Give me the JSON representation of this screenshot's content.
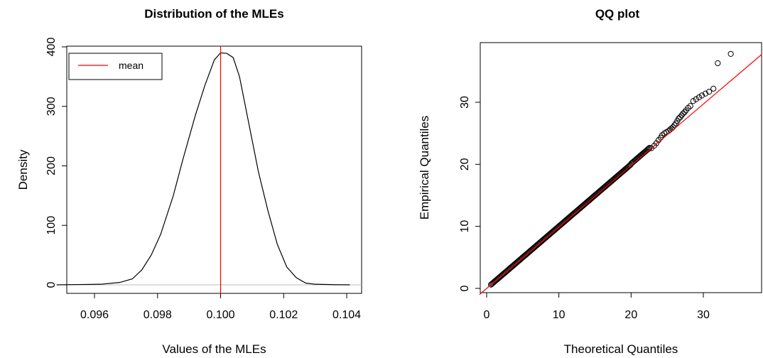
{
  "chart_data": [
    {
      "type": "line",
      "title": "Distribution of the MLEs",
      "xlabel": "Values of the MLEs",
      "ylabel": "Density",
      "xlim": [
        0.0945,
        0.1045
      ],
      "ylim": [
        -10,
        405
      ],
      "xticks": [
        0.096,
        0.098,
        0.1,
        0.102,
        0.104
      ],
      "xtick_labels": [
        "0.096",
        "0.098",
        "0.100",
        "0.102",
        "0.104"
      ],
      "yticks": [
        0,
        100,
        200,
        300,
        400
      ],
      "ytick_labels": [
        "0",
        "100",
        "200",
        "300",
        "400"
      ],
      "grid": false,
      "legend": {
        "position": "top-left",
        "entries": [
          {
            "label": "mean",
            "color": "#ff0000"
          }
        ]
      },
      "series": [
        {
          "color": "#000000",
          "x": [
            0.0948,
            0.0955,
            0.0962,
            0.0968,
            0.0972,
            0.0975,
            0.0978,
            0.0981,
            0.0985,
            0.0988,
            0.0992,
            0.0995,
            0.0998,
            0.1,
            0.1002,
            0.1004,
            0.1006,
            0.1009,
            0.1012,
            0.1015,
            0.1018,
            0.1021,
            0.1024,
            0.1027,
            0.103,
            0.1036,
            0.1041
          ],
          "y": [
            0,
            0.5,
            1,
            4,
            10,
            25,
            50,
            85,
            150,
            210,
            285,
            335,
            378,
            390,
            389,
            382,
            350,
            270,
            190,
            125,
            68,
            30,
            12,
            3,
            1,
            0.3,
            0
          ]
        }
      ],
      "reference_lines": [
        {
          "orientation": "vertical",
          "value": 0.1,
          "color": "#ff0000",
          "label": "mean"
        },
        {
          "orientation": "horizontal",
          "value": 0,
          "color": "#bebebe"
        }
      ]
    },
    {
      "type": "scatter",
      "title": "QQ plot",
      "xlabel": "Theoretical Quantiles",
      "ylabel": "Empirical Quantiles",
      "xlim": [
        -1,
        38.5
      ],
      "ylim": [
        -0.6,
        39
      ],
      "xticks": [
        0,
        10,
        20,
        30
      ],
      "xtick_labels": [
        "0",
        "10",
        "20",
        "30"
      ],
      "yticks": [
        0,
        10,
        20,
        30
      ],
      "ytick_labels": [
        "0",
        "10",
        "20",
        "30"
      ],
      "grid": false,
      "diagonal": {
        "slope": 1,
        "intercept": 0,
        "color": "#ff0000"
      },
      "point_color": "#000000",
      "outlier_points": [
        [
          22.8,
          22.6
        ],
        [
          23.2,
          23.0
        ],
        [
          23.5,
          23.4
        ],
        [
          23.8,
          23.9
        ],
        [
          24.1,
          24.3
        ],
        [
          24.3,
          24.7
        ],
        [
          24.6,
          25.0
        ],
        [
          24.9,
          25.2
        ],
        [
          25.2,
          25.4
        ],
        [
          25.4,
          25.6
        ],
        [
          25.6,
          25.8
        ],
        [
          25.8,
          26.0
        ],
        [
          26.0,
          26.3
        ],
        [
          26.2,
          26.6
        ],
        [
          26.4,
          27.0
        ],
        [
          26.6,
          27.4
        ],
        [
          26.8,
          27.6
        ],
        [
          27.0,
          27.9
        ],
        [
          27.2,
          28.2
        ],
        [
          27.4,
          28.4
        ],
        [
          27.6,
          28.7
        ],
        [
          27.9,
          29.1
        ],
        [
          28.2,
          29.4
        ],
        [
          28.6,
          30.2
        ],
        [
          29.0,
          30.5
        ],
        [
          29.4,
          30.8
        ],
        [
          29.8,
          31.1
        ],
        [
          30.3,
          31.4
        ],
        [
          30.8,
          31.7
        ],
        [
          31.4,
          32.2
        ],
        [
          32.0,
          36.3
        ],
        [
          33.8,
          37.8
        ]
      ]
    }
  ]
}
